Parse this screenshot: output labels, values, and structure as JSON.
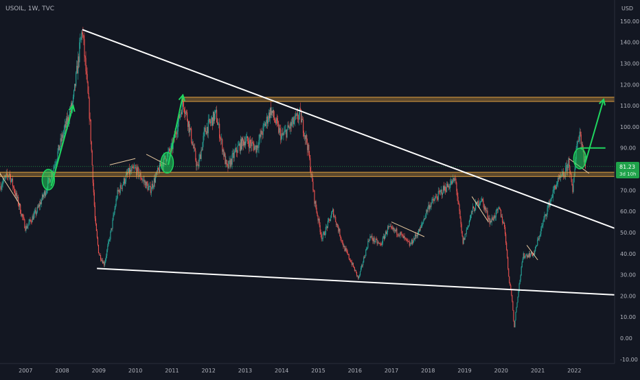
{
  "header": {
    "symbol_label": "USOIL, 1W, TVC",
    "currency": "USD"
  },
  "price_tag": {
    "price": "81.23",
    "countdown": "3d 10h"
  },
  "colors": {
    "background": "#131722",
    "candle_up": "#26a69a",
    "candle_down": "#ef5350",
    "resistance_band": "#e0a040",
    "trendline": "#ffffff",
    "arrow": "#1fd65f",
    "price_tag": "#1fa24a",
    "axis_text": "#b2b5be"
  },
  "chart_data": {
    "type": "candlestick",
    "title": "USOIL, 1W, TVC",
    "x_axis": {
      "ticks": [
        "2007",
        "2008",
        "2009",
        "2010",
        "2011",
        "2012",
        "2013",
        "2014",
        "2015",
        "2016",
        "2017",
        "2018",
        "2019",
        "2020",
        "2021",
        "2022"
      ],
      "range": [
        2006.3,
        2023.1
      ]
    },
    "y_axis": {
      "unit": "USD",
      "ticks": [
        "-10.00",
        "0.00",
        "10.00",
        "20.00",
        "30.00",
        "40.00",
        "50.00",
        "60.00",
        "70.00",
        "80.00",
        "90.00",
        "100.00",
        "110.00",
        "120.00",
        "130.00",
        "140.00",
        "150.00"
      ],
      "range": [
        -12,
        160
      ]
    },
    "grid": false,
    "last_price": 81.23,
    "price_path": [
      [
        2006.3,
        72
      ],
      [
        2006.55,
        78
      ],
      [
        2006.8,
        64
      ],
      [
        2007.0,
        52
      ],
      [
        2007.3,
        60
      ],
      [
        2007.55,
        70
      ],
      [
        2007.75,
        80
      ],
      [
        2008.0,
        95
      ],
      [
        2008.3,
        112
      ],
      [
        2008.5,
        140
      ],
      [
        2008.55,
        146
      ],
      [
        2008.75,
        105
      ],
      [
        2008.9,
        55
      ],
      [
        2009.0,
        40
      ],
      [
        2009.15,
        35
      ],
      [
        2009.35,
        52
      ],
      [
        2009.5,
        68
      ],
      [
        2009.8,
        78
      ],
      [
        2010.0,
        80
      ],
      [
        2010.4,
        70
      ],
      [
        2010.7,
        82
      ],
      [
        2011.0,
        90
      ],
      [
        2011.3,
        112
      ],
      [
        2011.45,
        102
      ],
      [
        2011.7,
        80
      ],
      [
        2011.9,
        98
      ],
      [
        2012.2,
        106
      ],
      [
        2012.5,
        80
      ],
      [
        2012.8,
        90
      ],
      [
        2013.0,
        94
      ],
      [
        2013.3,
        90
      ],
      [
        2013.7,
        108
      ],
      [
        2014.0,
        95
      ],
      [
        2014.5,
        106
      ],
      [
        2014.7,
        92
      ],
      [
        2014.9,
        65
      ],
      [
        2015.1,
        47
      ],
      [
        2015.4,
        60
      ],
      [
        2015.7,
        43
      ],
      [
        2015.9,
        36
      ],
      [
        2016.1,
        28
      ],
      [
        2016.4,
        48
      ],
      [
        2016.7,
        44
      ],
      [
        2016.9,
        52
      ],
      [
        2017.2,
        50
      ],
      [
        2017.5,
        44
      ],
      [
        2017.8,
        52
      ],
      [
        2018.0,
        62
      ],
      [
        2018.4,
        70
      ],
      [
        2018.75,
        75
      ],
      [
        2018.95,
        45
      ],
      [
        2019.2,
        60
      ],
      [
        2019.45,
        66
      ],
      [
        2019.7,
        55
      ],
      [
        2019.95,
        61
      ],
      [
        2020.1,
        52
      ],
      [
        2020.2,
        30
      ],
      [
        2020.3,
        18
      ],
      [
        2020.35,
        5
      ],
      [
        2020.45,
        20
      ],
      [
        2020.6,
        39
      ],
      [
        2020.9,
        40
      ],
      [
        2021.2,
        58
      ],
      [
        2021.5,
        73
      ],
      [
        2021.75,
        78
      ],
      [
        2021.85,
        84
      ],
      [
        2021.95,
        68
      ],
      [
        2022.05,
        90
      ],
      [
        2022.15,
        98
      ],
      [
        2022.3,
        81.23
      ]
    ],
    "annotations": {
      "resistance_band_1": [
        112,
        114
      ],
      "resistance_band_2": [
        76.5,
        78.5
      ],
      "descending_trendline": [
        [
          2008.55,
          146
        ],
        [
          2023.1,
          52
        ]
      ],
      "lower_trendline": [
        [
          2008.95,
          33
        ],
        [
          2023.1,
          20.5
        ]
      ],
      "target_line_price": 90,
      "projection_arrows": [
        [
          [
            2007.7,
            72
          ],
          [
            2008.3,
            110
          ]
        ],
        [
          [
            2010.9,
            82
          ],
          [
            2011.3,
            115
          ]
        ],
        [
          [
            2022.3,
            83
          ],
          [
            2022.8,
            113
          ]
        ]
      ],
      "highlight_ellipses": [
        [
          2007.62,
          75
        ],
        [
          2010.87,
          83
        ],
        [
          2022.15,
          85
        ]
      ]
    }
  }
}
